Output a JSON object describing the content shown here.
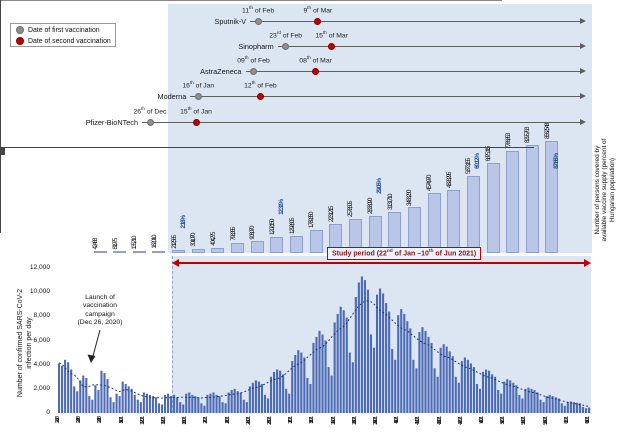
{
  "chart_data": [
    {
      "type": "timeline",
      "name": "vaccination-rollout-timeline",
      "legend": [
        {
          "label": "Date of first vaccination",
          "color": "#8f8f8f"
        },
        {
          "label": "Date of second vaccination",
          "color": "#c00000"
        }
      ],
      "series": [
        {
          "name": "Sputnik-V",
          "first": {
            "date": "2021-02-11",
            "day": "11",
            "suffix": "th",
            "rest": " of Feb"
          },
          "second": {
            "date": "2021-03-09",
            "day": "9",
            "suffix": "th",
            "rest": " of Mar"
          }
        },
        {
          "name": "Sinopharm",
          "first": {
            "date": "2021-02-23",
            "day": "23",
            "suffix": "rd",
            "rest": " of Feb"
          },
          "second": {
            "date": "2021-03-15",
            "day": "15",
            "suffix": "th",
            "rest": " of Mar"
          }
        },
        {
          "name": "AstraZeneca",
          "first": {
            "date": "2021-02-09",
            "day": "09",
            "suffix": "th",
            "rest": " of Feb"
          },
          "second": {
            "date": "2021-03-08",
            "day": "08",
            "suffix": "th",
            "rest": " of Mar"
          }
        },
        {
          "name": "Moderna",
          "first": {
            "date": "2021-01-16",
            "day": "16",
            "suffix": "th",
            "rest": " of Jan"
          },
          "second": {
            "date": "2021-02-12",
            "day": "12",
            "suffix": "th",
            "rest": " of Feb"
          }
        },
        {
          "name": "Pfizer-BioNTech",
          "first": {
            "date": "2020-12-26",
            "day": "26",
            "suffix": "th",
            "rest": " of Dec"
          },
          "second": {
            "date": "2021-01-15",
            "day": "15",
            "suffix": "th",
            "rest": " of Jan"
          }
        }
      ]
    },
    {
      "type": "bar",
      "name": "vaccine-supply",
      "ylabel": "Number of persons covered by available vaccine supply (percent of Hungarian population)",
      "categories": [
        "12/29/20",
        "1/5/2021",
        "1/12/2021",
        "1/19/2021",
        "1/26/2021",
        "2/2/2021",
        "2/9/2021",
        "2/16/2021",
        "2/23/2021",
        "3/2/2021",
        "3/9/2021",
        "3/16/2021",
        "3/23/2021",
        "3/30/2021",
        "4/6/2021",
        "4/13/2021",
        "4/20/2021",
        "4/27/2021",
        "5/4/2021",
        "5/11/2021",
        "5/18/2021",
        "5/25/2021",
        "6/1/2021",
        "6/8/2021"
      ],
      "values": [
        42488,
        81975,
        135210,
        182010,
        212565,
        301070,
        404275,
        793355,
        903070,
        1202150,
        1292605,
        1789350,
        2231215,
        2578505,
        2838090,
        3131710,
        3483230,
        4574970,
        4828295,
        5873155,
        6875115,
        7786853,
        8295763,
        8562548
      ],
      "labels": [
        "42,488",
        "81,975",
        "135,210",
        "182,010",
        "212,565",
        "301,070",
        "404,275",
        "793,355",
        "903,070",
        "1,202,150",
        "1,292,605",
        "1,789,350",
        "2,231,215",
        "2,578,505",
        "2,838,090",
        "3,131,710",
        "3,483,230",
        "4,574,970",
        "4,828,295",
        "5,873,155",
        "6,875,115",
        "7,786,853",
        "8,295,763",
        "8,562,548"
      ],
      "milestones": [
        {
          "index": 4,
          "label": "2.18%"
        },
        {
          "index": 9,
          "label": "12.31%"
        },
        {
          "index": 14,
          "label": "29.05%"
        },
        {
          "index": 19,
          "label": "60.12%"
        },
        {
          "index": 23,
          "label": "87.65%"
        }
      ],
      "bar_color": "#b9c6e8",
      "milestone_color": "#1f4e9b",
      "ylim": [
        0,
        8562548
      ]
    },
    {
      "type": "bar",
      "name": "daily-confirmed-infections",
      "ylabel": "Number of confirmed SARS-CoV-2 infection per day",
      "ylim": [
        0,
        12000
      ],
      "ytick_labels": [
        "12,000",
        "10,000",
        "8,000",
        "6,000",
        "4,000",
        "2,000",
        "0"
      ],
      "xtick_labels": [
        "12/15/20",
        "12/22/20",
        "12/29/20",
        "1/5/2021",
        "1/12/2021",
        "1/19/2021",
        "1/26/2021",
        "2/2/2021",
        "2/9/2021",
        "2/16/2021",
        "2/23/2021",
        "3/2/2021",
        "3/9/2021",
        "3/16/2021",
        "3/23/2021",
        "3/30/2021",
        "4/6/2021",
        "4/13/2021",
        "4/20/2021",
        "4/27/2021",
        "5/4/2021",
        "5/11/2021",
        "5/18/2021",
        "5/25/2021",
        "6/1/2021",
        "6/8/2021"
      ],
      "values": [
        4100,
        3900,
        4400,
        4200,
        3600,
        2200,
        1800,
        2700,
        3100,
        2900,
        1400,
        1100,
        2300,
        1900,
        3500,
        3300,
        2800,
        1300,
        900,
        1600,
        1400,
        2600,
        2400,
        2200,
        2000,
        1500,
        1100,
        900,
        1700,
        1600,
        1500,
        1400,
        1300,
        800,
        700,
        1500,
        1600,
        1400,
        1500,
        1300,
        900,
        700,
        1600,
        1700,
        1500,
        1400,
        1300,
        800,
        600,
        1500,
        1600,
        1700,
        1500,
        1400,
        900,
        800,
        1700,
        1900,
        2000,
        1800,
        1700,
        1100,
        900,
        2200,
        2500,
        2700,
        2600,
        2400,
        1500,
        1200,
        3000,
        3400,
        3600,
        3500,
        3200,
        2000,
        1600,
        4300,
        4800,
        5200,
        5000,
        4600,
        2900,
        2400,
        5800,
        6300,
        6800,
        6500,
        6000,
        3800,
        3100,
        7500,
        8200,
        8800,
        8500,
        7900,
        5000,
        4200,
        9600,
        10800,
        11300,
        11000,
        10200,
        6500,
        5400,
        9800,
        10300,
        9900,
        9100,
        8400,
        5300,
        4400,
        8100,
        8600,
        8200,
        7600,
        7000,
        4400,
        3700,
        6700,
        7100,
        6800,
        6300,
        5800,
        3700,
        3000,
        5400,
        5700,
        5500,
        5100,
        4700,
        3000,
        2500,
        4300,
        4600,
        4400,
        4100,
        3800,
        2400,
        2000,
        3400,
        3600,
        3500,
        3200,
        3000,
        1900,
        1600,
        2600,
        2800,
        2700,
        2500,
        2300,
        1500,
        1200,
        2000,
        2100,
        2000,
        1900,
        1700,
        1100,
        900,
        1400,
        1500,
        1400,
        1300,
        1200,
        800,
        600,
        900,
        950,
        900,
        850,
        800,
        500,
        400,
        450
      ],
      "bar_color": "#4d6ab5",
      "trend_line": "7-day moving average (dotted)",
      "annotation": {
        "lines": [
          "Launch of",
          "vaccination",
          "campaign",
          "(Dec 26, 2020)"
        ]
      },
      "study_period": {
        "color": "#c00000",
        "label_parts": [
          {
            "t": "Study period (22",
            "sup": false
          },
          {
            "t": "nd",
            "sup": true
          },
          {
            "t": " of Jan –10",
            "sup": false
          },
          {
            "t": "th",
            "sup": true
          },
          {
            "t": " of Jun 2021)",
            "sup": false
          }
        ]
      }
    }
  ]
}
